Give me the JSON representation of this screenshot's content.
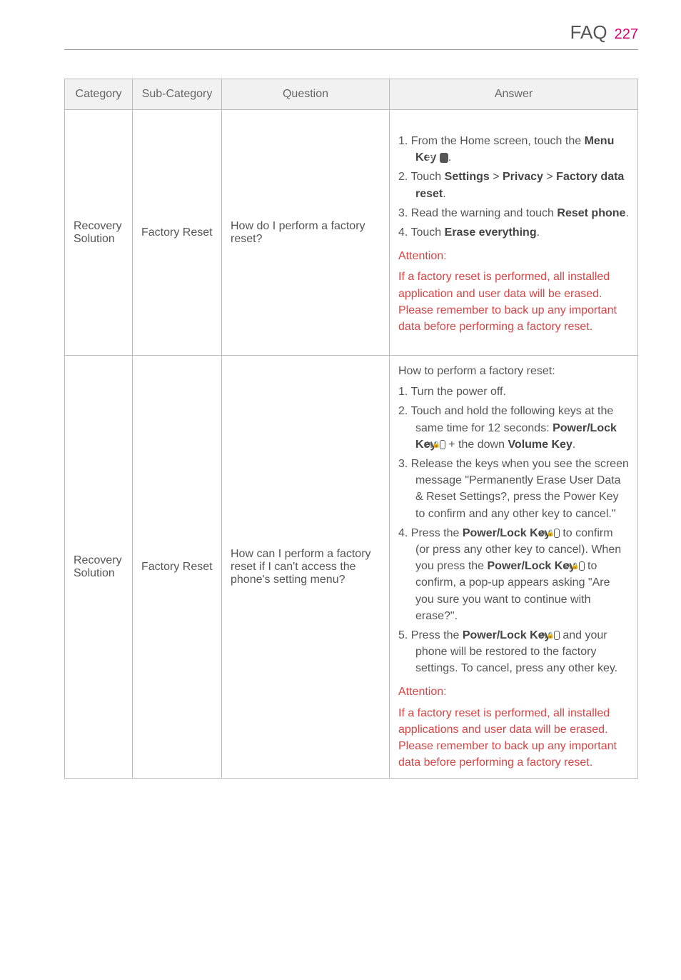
{
  "header": {
    "title": "FAQ",
    "page": "227"
  },
  "columns": [
    "Category",
    "Sub-Category",
    "Question",
    "Answer"
  ],
  "rows": [
    {
      "category": "Recovery Solution",
      "subcategory": "Factory Reset",
      "question": "How do I perform a factory reset?",
      "answer": {
        "steps": [
          {
            "prefix": "1. ",
            "parts": [
              "From the Home screen, touch the ",
              {
                "b": "Menu Key"
              },
              " ",
              {
                "icon": "menu"
              },
              "."
            ]
          },
          {
            "prefix": "2. ",
            "parts": [
              "Touch ",
              {
                "b": "Settings"
              },
              " > ",
              {
                "b": "Privacy"
              },
              " > ",
              {
                "b": "Factory data reset"
              },
              "."
            ]
          },
          {
            "prefix": "3. ",
            "parts": [
              "Read the warning and touch ",
              {
                "b": "Reset phone"
              },
              "."
            ]
          },
          {
            "prefix": "4. ",
            "parts": [
              "Touch ",
              {
                "b": "Erase everything"
              },
              "."
            ]
          }
        ],
        "warn_head": "Attention:",
        "warn_body": "If a factory reset is performed, all installed application and user data will be erased. Please remember to back up any important data before performing a factory reset."
      }
    },
    {
      "category": "Recovery Solution",
      "subcategory": "Factory Reset",
      "question": "How can I perform a factory reset if I can't access the phone's setting menu?",
      "answer": {
        "intro": "How to perform a factory reset:",
        "steps": [
          {
            "prefix": "1. ",
            "parts": [
              "Turn the power off."
            ]
          },
          {
            "prefix": "2. ",
            "parts": [
              "Touch and hold the following keys at the same time for 12 seconds: ",
              {
                "b": "Power/Lock Key"
              },
              " ",
              {
                "icon": "key"
              },
              " + the down ",
              {
                "b": "Volume Key"
              },
              "."
            ]
          },
          {
            "prefix": "3. ",
            "parts": [
              "Release the keys when you see the screen message \"Permanently Erase User Data & Reset Settings?, press the Power Key to confirm and any other key to cancel.\""
            ]
          },
          {
            "prefix": "4. ",
            "parts": [
              "Press the ",
              {
                "b": "Power/Lock Key"
              },
              " ",
              {
                "icon": "key"
              },
              " to confirm (or press any other key to cancel). When you press the ",
              {
                "b": "Power/Lock Key"
              },
              " ",
              {
                "icon": "key"
              },
              " to confirm, a pop-up appears asking \"Are you sure you want to continue with erase?\"."
            ]
          },
          {
            "prefix": "5. ",
            "parts": [
              "Press the ",
              {
                "b": "Power/Lock Key"
              },
              " ",
              {
                "icon": "key"
              },
              " and your phone will be restored to the factory settings. To cancel, press any other key."
            ]
          }
        ],
        "warn_head": "Attention:",
        "warn_body": "If a factory reset is performed, all installed applications and user data will be erased. Please remember to back up any important data before performing a factory reset."
      }
    }
  ]
}
